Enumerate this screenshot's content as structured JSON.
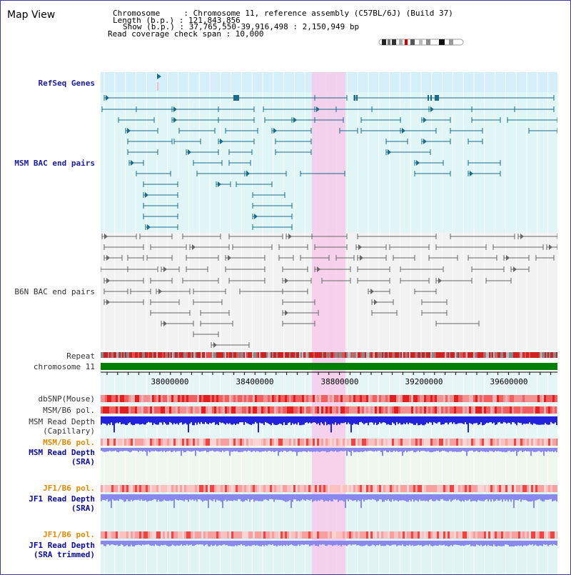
{
  "panel": {
    "title": "Map View",
    "chromosome_line": "Chromosome     : Chromosome 11, reference assembly (C57BL/6J) (Build 37)",
    "length_line": "Length (b.p.) : 121,843,856",
    "show_line": "Show (b.p.) : 37,765,550-39,916,498 : 2,150,949 bp",
    "coverage_line": "Read coverage check span : 10,000"
  },
  "tracks": {
    "refseq": "RefSeq Genes",
    "msm_bac": "MSM BAC end pairs",
    "b6n_bac": "B6N BAC end pairs",
    "repeat": "Repeat",
    "chromosome": "chromosome 11",
    "dbsnp": "dbSNP(Mouse)",
    "msm_b6_pol_1": "MSM/B6 pol.",
    "msm_read_depth_cap_1": "MSM Read Depth",
    "msm_read_depth_cap_2": "(Capillary)",
    "msm_b6_pol_2": "MSM/B6 pol.",
    "msm_read_depth_sra_1": "MSM Read Depth",
    "msm_read_depth_sra_2": "(SRA)",
    "jf1_b6_pol_1": "JF1/B6 pol.",
    "jf1_read_depth_sra_1": "JF1 Read Depth",
    "jf1_read_depth_sra_2": "(SRA)",
    "jf1_b6_pol_2": "JF1/B6 pol.",
    "jf1_read_depth_trim_1": "JF1 Read Depth",
    "jf1_read_depth_trim_2": "(SRA trimmed)"
  },
  "axis": {
    "ticks": [
      "38000000",
      "38400000",
      "38800000",
      "39200000",
      "39600000"
    ]
  },
  "colors": {
    "highlight": "#f7c8ea",
    "refseq_bg": "#d4eefa",
    "msm_bg": "#e0f6f6",
    "b6n_bg": "#f2f2f2",
    "gene": "#1a6a8a",
    "bac": "#666666",
    "chromosome": "#008000",
    "repeat": "#cc2222",
    "depth": "#2222dd",
    "depth_light": "#8888ee"
  }
}
